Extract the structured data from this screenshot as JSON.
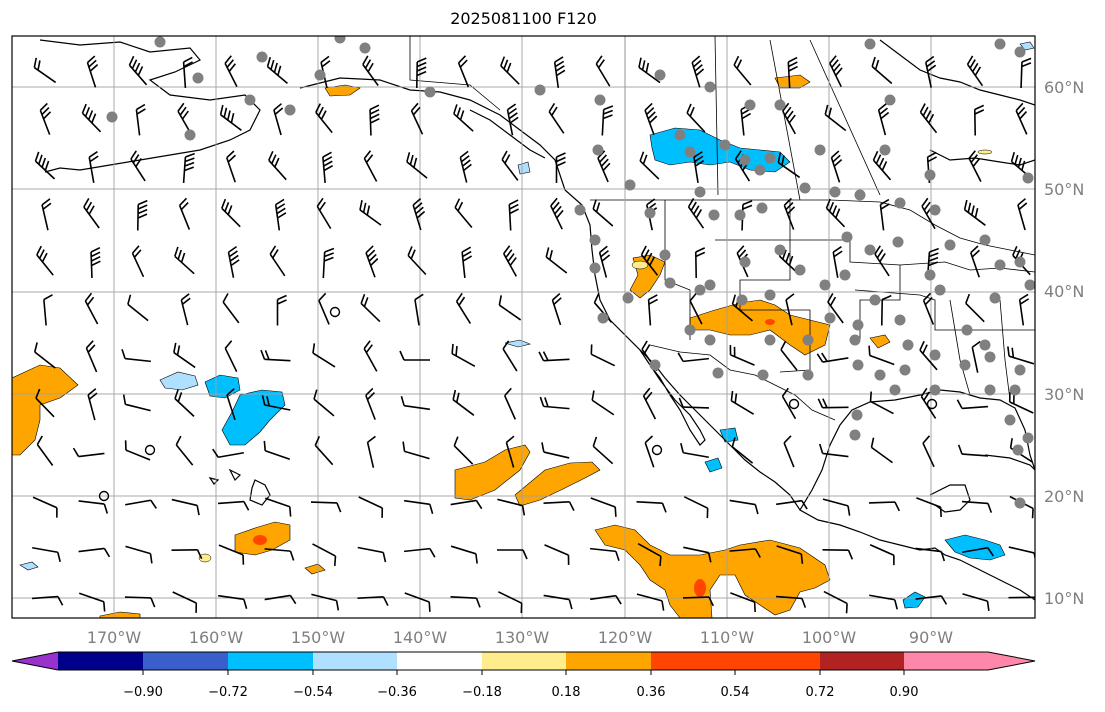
{
  "title": "2025081100 F120",
  "axes": {
    "lat_labels": [
      "60°N",
      "50°N",
      "40°N",
      "30°N",
      "20°N",
      "10°N"
    ],
    "lon_labels": [
      "170°W",
      "160°W",
      "150°W",
      "140°W",
      "130°W",
      "120°W",
      "110°W",
      "100°W",
      "90°W"
    ]
  },
  "colorbar": {
    "colors": [
      "#9932cc",
      "#00008b",
      "#3a5fcd",
      "#00bfff",
      "#b0e0ff",
      "#ffffff",
      "#ffec8b",
      "#ffa500",
      "#ff4500",
      "#b22222",
      "#ff88aa"
    ],
    "tick_labels": [
      "−0.90",
      "−0.72",
      "−0.54",
      "−0.36",
      "−0.18",
      "0.18",
      "0.36",
      "0.54",
      "0.72",
      "0.90"
    ]
  }
}
